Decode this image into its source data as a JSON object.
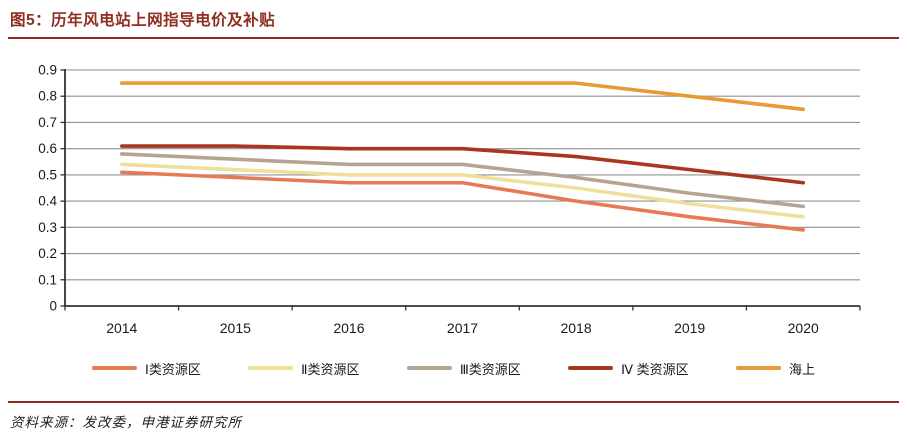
{
  "header": {
    "title": "图5：历年风电站上网指导电价及补贴"
  },
  "footer": {
    "source_note": "资料来源：发改委，申港证券研究所"
  },
  "colors": {
    "accent_red": "#8F2D20",
    "grid": "#909090",
    "axis": "#333333",
    "tick": "#333333",
    "label_text": "#1a1a1a"
  },
  "chart_data": {
    "type": "line",
    "title": "历年风电站上网指导电价及补贴",
    "xlabel": "",
    "ylabel": "",
    "categories": [
      "2014",
      "2015",
      "2016",
      "2017",
      "2018",
      "2019",
      "2020"
    ],
    "series": [
      {
        "name": "Ⅰ类资源区",
        "color": "#E67A55",
        "values": [
          0.51,
          0.49,
          0.47,
          0.47,
          0.4,
          0.34,
          0.29
        ]
      },
      {
        "name": "Ⅱ类资源区",
        "color": "#EEDF9B",
        "values": [
          0.54,
          0.52,
          0.5,
          0.5,
          0.45,
          0.39,
          0.34
        ]
      },
      {
        "name": "Ⅲ类资源区",
        "color": "#B3A592",
        "values": [
          0.58,
          0.56,
          0.54,
          0.54,
          0.49,
          0.43,
          0.38
        ]
      },
      {
        "name": "Ⅳ 类资源区",
        "color": "#A93620",
        "values": [
          0.61,
          0.61,
          0.6,
          0.6,
          0.57,
          0.52,
          0.47
        ]
      },
      {
        "name": "海上",
        "color": "#E89A35",
        "values": [
          0.85,
          0.85,
          0.85,
          0.85,
          0.85,
          0.8,
          0.75
        ]
      }
    ],
    "ylim": [
      0,
      0.9
    ],
    "ytick_labels": [
      "0.9",
      "0.8",
      "0.7",
      "0.6",
      "0.5",
      "0.4",
      "0.3",
      "0.2",
      "0.1",
      "0"
    ],
    "grid": true,
    "legend_position": "bottom"
  }
}
